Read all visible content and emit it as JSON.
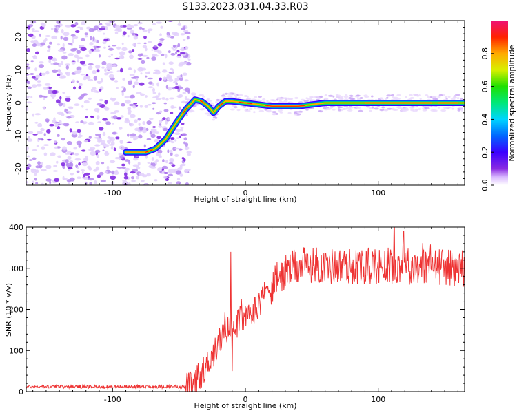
{
  "figure_title": "S133.2023.031.04.33.R03",
  "chart_data": [
    {
      "type": "heatmap",
      "description_free": true,
      "xlabel": "Height of straight line (km)",
      "ylabel": "Frequency (Hz)",
      "xlim": [
        -165,
        165
      ],
      "ylim": [
        -25,
        25
      ],
      "xticks": [
        -100,
        0,
        100
      ],
      "yticks": [
        -20,
        -10,
        0,
        10,
        20
      ],
      "colorbar": {
        "label": "Normalized spectral amplitude",
        "range": [
          0,
          1
        ],
        "ticks": [
          0.0,
          0.2,
          0.4,
          0.6,
          0.8
        ]
      },
      "ridge": {
        "x": [
          -90,
          -75,
          -68,
          -60,
          -52,
          -45,
          -38,
          -33,
          -28,
          -24,
          -20,
          -15,
          -10,
          0,
          20,
          40,
          60,
          80,
          100,
          120,
          140,
          165
        ],
        "y": [
          -15,
          -15,
          -14,
          -11,
          -6,
          -2,
          1,
          0.5,
          -1,
          -3,
          -1,
          0.5,
          0.5,
          0,
          -1,
          -1,
          0,
          0,
          0,
          0,
          0,
          0
        ]
      },
      "noise_region_x": [
        -165,
        -50
      ]
    },
    {
      "type": "line",
      "xlabel": "Height of straight line (km)",
      "ylabel": "SNR (10 * v/v)",
      "xlim": [
        -165,
        165
      ],
      "ylim": [
        0,
        400
      ],
      "xticks": [
        -100,
        0,
        100
      ],
      "yticks": [
        0,
        100,
        200,
        300,
        400
      ],
      "color": "#ee3333",
      "trend": {
        "x": [
          -165,
          -45,
          -40,
          -35,
          -30,
          -25,
          -20,
          -15,
          -10,
          -5,
          0,
          5,
          10,
          15,
          20,
          25,
          30,
          40,
          50,
          60,
          80,
          100,
          120,
          140,
          165
        ],
        "y": [
          12,
          12,
          15,
          25,
          60,
          90,
          120,
          150,
          155,
          170,
          180,
          190,
          215,
          240,
          260,
          275,
          290,
          305,
          310,
          305,
          305,
          305,
          310,
          305,
          300
        ]
      },
      "spikes": [
        {
          "x": -11,
          "y": 340
        },
        {
          "x": -10,
          "y": 50
        },
        {
          "x": 112,
          "y": 400
        },
        {
          "x": 119,
          "y": 390
        }
      ]
    }
  ]
}
